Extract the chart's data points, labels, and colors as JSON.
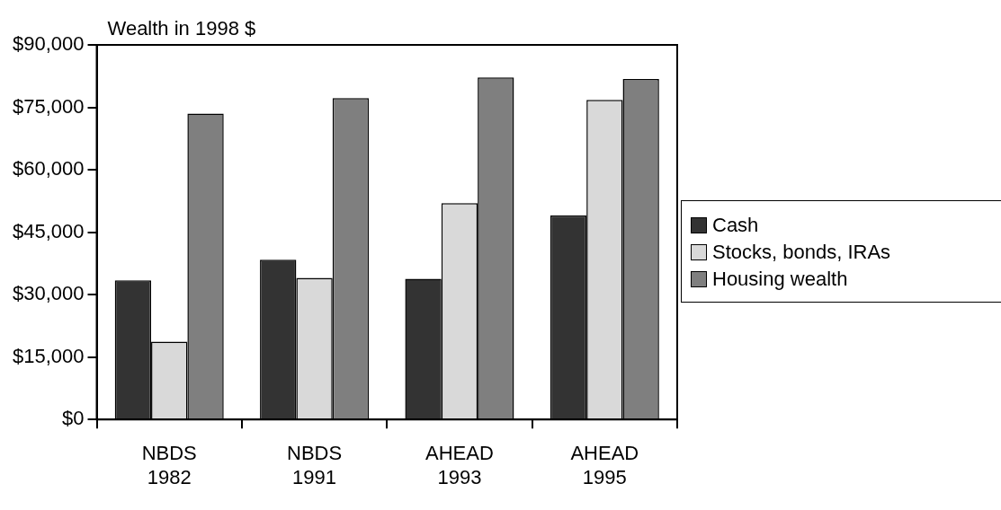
{
  "chart_data": {
    "type": "bar",
    "ylabel": "Wealth in 1998 $",
    "categories": [
      "NBDS 1982",
      "NBDS 1991",
      "AHEAD 1993",
      "AHEAD 1995"
    ],
    "series": [
      {
        "name": "Cash",
        "color": "#333333",
        "values": [
          33400,
          38400,
          33800,
          49000
        ]
      },
      {
        "name": "Stocks, bonds, IRAs",
        "color": "#d9d9d9",
        "values": [
          18700,
          34000,
          52000,
          76800
        ]
      },
      {
        "name": "Housing wealth",
        "color": "#7f7f7f",
        "values": [
          73500,
          77200,
          82200,
          81800
        ]
      }
    ],
    "ylim": [
      0,
      90000
    ],
    "yticks": [
      {
        "value": 0,
        "label": "$0"
      },
      {
        "value": 15000,
        "label": "$15,000"
      },
      {
        "value": 30000,
        "label": "$30,000"
      },
      {
        "value": 45000,
        "label": "$45,000"
      },
      {
        "value": 60000,
        "label": "$60,000"
      },
      {
        "value": 75000,
        "label": "$75,000"
      },
      {
        "value": 90000,
        "label": "$90,000"
      }
    ],
    "grid": false,
    "legend": "right"
  }
}
